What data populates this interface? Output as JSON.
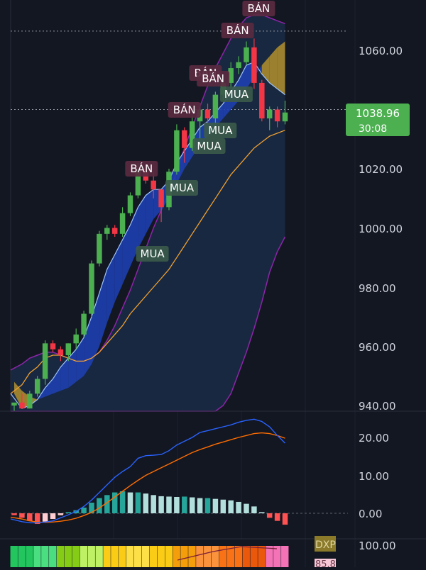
{
  "colors": {
    "background": "#131722",
    "grid": "#1e2230",
    "up": "#4caf50",
    "down": "#f23645",
    "band_fill": "#1a2b45",
    "band_line": "#8e24aa",
    "ma_line": "#f0a030",
    "macd_line": "#2962ff",
    "signal_line": "#ff6d00",
    "ribbon_blue": "#1e3fb0",
    "ribbon_gold": "#a88a2e",
    "hist_pos_strong": "#26a69a",
    "hist_pos_weak": "#b2dfdb",
    "hist_neg_strong": "#ff5252",
    "hist_neg_weak": "#ffcdd2",
    "buy_label_bg": "#3b5a4a",
    "sell_label_bg": "#5a2a40",
    "price_badge": "#4caf50"
  },
  "price_axis": {
    "ticks": [
      "1060.00",
      "1040.00",
      "1020.00",
      "1000.00",
      "980.00",
      "960.00",
      "940.00"
    ],
    "tick_values": [
      1060,
      1040,
      1020,
      1000,
      980,
      960,
      940
    ],
    "current_price": "1038.96",
    "countdown": "30:08"
  },
  "macd_axis": {
    "ticks": [
      "20.00",
      "10.00",
      "0.00"
    ],
    "tick_values": [
      20,
      10,
      0
    ]
  },
  "osc_axis": {
    "ticks": [
      "100.00"
    ],
    "partial_value": "85.8",
    "label": "DXP"
  },
  "signals": {
    "buy_text": "MUA",
    "sell_text": "BÁN"
  },
  "chart_data": [
    {
      "type": "candlestick",
      "title": "",
      "ylim": [
        938,
        1074
      ],
      "candles": [
        {
          "o": 940,
          "h": 941,
          "l": 938,
          "c": 941
        },
        {
          "o": 941,
          "h": 944,
          "l": 939,
          "c": 939
        },
        {
          "o": 939,
          "h": 945,
          "l": 939,
          "c": 944
        },
        {
          "o": 944,
          "h": 950,
          "l": 943,
          "c": 949
        },
        {
          "o": 949,
          "h": 962,
          "l": 947,
          "c": 961
        },
        {
          "o": 961,
          "h": 962,
          "l": 958,
          "c": 959
        },
        {
          "o": 959,
          "h": 960,
          "l": 955,
          "c": 957
        },
        {
          "o": 957,
          "h": 961,
          "l": 955,
          "c": 961
        },
        {
          "o": 961,
          "h": 966,
          "l": 959,
          "c": 964
        },
        {
          "o": 964,
          "h": 972,
          "l": 963,
          "c": 971
        },
        {
          "o": 971,
          "h": 989,
          "l": 970,
          "c": 988
        },
        {
          "o": 988,
          "h": 999,
          "l": 987,
          "c": 998
        },
        {
          "o": 998,
          "h": 1001,
          "l": 996,
          "c": 1000
        },
        {
          "o": 1000,
          "h": 1001,
          "l": 997,
          "c": 998
        },
        {
          "o": 998,
          "h": 1007,
          "l": 997,
          "c": 1005
        },
        {
          "o": 1005,
          "h": 1012,
          "l": 1004,
          "c": 1011
        },
        {
          "o": 1011,
          "h": 1022,
          "l": 1010,
          "c": 1020
        },
        {
          "o": 1020,
          "h": 1022,
          "l": 1015,
          "c": 1016
        },
        {
          "o": 1016,
          "h": 1019,
          "l": 1010,
          "c": 1013
        },
        {
          "o": 1013,
          "h": 1013,
          "l": 1002,
          "c": 1007
        },
        {
          "o": 1007,
          "h": 1020,
          "l": 1006,
          "c": 1019
        },
        {
          "o": 1019,
          "h": 1035,
          "l": 1018,
          "c": 1033
        },
        {
          "o": 1033,
          "h": 1034,
          "l": 1022,
          "c": 1027
        },
        {
          "o": 1027,
          "h": 1038,
          "l": 1026,
          "c": 1036
        },
        {
          "o": 1036,
          "h": 1041,
          "l": 1030,
          "c": 1040
        },
        {
          "o": 1040,
          "h": 1042,
          "l": 1035,
          "c": 1037
        },
        {
          "o": 1037,
          "h": 1046,
          "l": 1035,
          "c": 1045
        },
        {
          "o": 1045,
          "h": 1050,
          "l": 1043,
          "c": 1049
        },
        {
          "o": 1049,
          "h": 1056,
          "l": 1047,
          "c": 1054
        },
        {
          "o": 1054,
          "h": 1058,
          "l": 1052,
          "c": 1056
        },
        {
          "o": 1056,
          "h": 1063,
          "l": 1055,
          "c": 1061
        },
        {
          "o": 1061,
          "h": 1064,
          "l": 1047,
          "c": 1049
        },
        {
          "o": 1049,
          "h": 1050,
          "l": 1036,
          "c": 1037
        },
        {
          "o": 1037,
          "h": 1041,
          "l": 1033,
          "c": 1040
        },
        {
          "o": 1040,
          "h": 1041,
          "l": 1034,
          "c": 1036
        },
        {
          "o": 1036,
          "h": 1043,
          "l": 1035,
          "c": 1039
        }
      ],
      "reference_lines": [
        1066.5,
        1040
      ],
      "upper_band": [
        952,
        954,
        956,
        957,
        958,
        958,
        957,
        956,
        955,
        955,
        956,
        958,
        962,
        967,
        973,
        979,
        986,
        993,
        1000,
        1006,
        1012,
        1019,
        1027,
        1034,
        1041,
        1048,
        1054,
        1059,
        1064,
        1068,
        1071,
        1072,
        1072,
        1071,
        1070,
        1069
      ],
      "lower_band": [
        933,
        934,
        935,
        936,
        936,
        937,
        937,
        937,
        936,
        935,
        934,
        932,
        930,
        928,
        926,
        925,
        924,
        924,
        924,
        925,
        926,
        928,
        930,
        932,
        934,
        936,
        938,
        940,
        944,
        951,
        958,
        966,
        975,
        985,
        992,
        997
      ],
      "ma_line": [
        944,
        947,
        951,
        953,
        956,
        957,
        957,
        956,
        955,
        955,
        956,
        958,
        961,
        964,
        967,
        971,
        974,
        977,
        980,
        983,
        986,
        990,
        994,
        998,
        1002,
        1006,
        1010,
        1014,
        1018,
        1021,
        1024,
        1027,
        1029,
        1031,
        1032,
        1033
      ],
      "ribbon_fast": [
        944,
        939,
        940,
        942,
        946,
        949,
        953,
        956,
        959,
        963,
        970,
        978,
        986,
        991,
        996,
        1001,
        1007,
        1011,
        1013,
        1013,
        1016,
        1022,
        1026,
        1030,
        1034,
        1036,
        1039,
        1042,
        1046,
        1050,
        1055,
        1056,
        1052,
        1049,
        1047,
        1045
      ],
      "ribbon_slow": [
        948,
        945,
        943,
        942,
        943,
        944,
        945,
        946,
        948,
        950,
        954,
        960,
        968,
        975,
        981,
        987,
        993,
        998,
        1003,
        1006,
        1010,
        1015,
        1020,
        1024,
        1028,
        1031,
        1034,
        1037,
        1040,
        1043,
        1047,
        1051,
        1055,
        1058,
        1061,
        1063
      ],
      "signals": [
        {
          "i": 17,
          "type": "sell"
        },
        {
          "i": 20,
          "type": "buy"
        },
        {
          "i": 14,
          "type": "buy"
        },
        {
          "i": 23,
          "type": "sell"
        },
        {
          "i": 25,
          "type": "buy"
        },
        {
          "i": 27,
          "type": "buy"
        },
        {
          "i": 26,
          "type": "sell"
        },
        {
          "i": 29,
          "type": "sell"
        },
        {
          "i": 31,
          "type": "buy"
        },
        {
          "i": 33,
          "type": "sell"
        },
        {
          "i": 36,
          "type": "sell"
        }
      ]
    },
    {
      "type": "macd",
      "ylim": [
        -3.5,
        25
      ],
      "macd": [
        -1.5,
        -2.2,
        -2.5,
        -2.5,
        -2.3,
        -2.0,
        -1.2,
        -0.4,
        0.5,
        1.8,
        3.5,
        5.5,
        7.5,
        9.5,
        11.0,
        12.3,
        14.5,
        15.2,
        15.3,
        15.5,
        16.5,
        18.0,
        19.0,
        20.0,
        21.3,
        21.8,
        22.3,
        22.8,
        23.3,
        24.0,
        24.5,
        24.8,
        24.2,
        22.8,
        20.5,
        18.5
      ],
      "signal": [
        -1.0,
        -1.5,
        -2.0,
        -2.3,
        -2.4,
        -2.3,
        -2.1,
        -1.8,
        -1.3,
        -0.6,
        0.2,
        1.4,
        2.8,
        4.3,
        5.8,
        7.3,
        8.7,
        10.0,
        11.0,
        12.0,
        13.0,
        14.0,
        15.0,
        16.0,
        16.8,
        17.5,
        18.2,
        18.8,
        19.4,
        20.0,
        20.5,
        21.0,
        21.2,
        21.0,
        20.5,
        19.8
      ],
      "histogram": [
        -0.5,
        -1.2,
        -2.0,
        -2.8,
        -2.2,
        -1.5,
        -0.5,
        0.3,
        0.8,
        1.5,
        2.8,
        4.0,
        4.8,
        5.5,
        5.8,
        5.5,
        5.5,
        5.2,
        4.8,
        4.5,
        4.4,
        4.3,
        4.4,
        4.2,
        4.0,
        4.0,
        3.8,
        3.6,
        3.4,
        3.0,
        2.5,
        1.8,
        0.3,
        -1.2,
        -2.0,
        -3.0
      ]
    }
  ]
}
